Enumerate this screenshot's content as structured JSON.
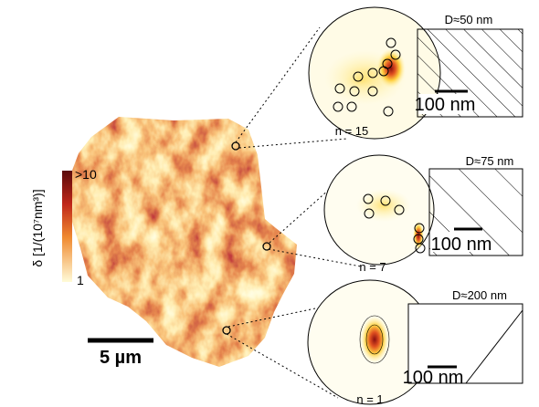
{
  "colorbar": {
    "label": "δ [1/(10⁷nm³)]",
    "max_label": ">10",
    "min_label": "1"
  },
  "scale_bar": "5 µm",
  "insets": [
    {
      "diameter_label": "D≈50 nm",
      "scale_label": "100 nm",
      "count_label": "n = 15"
    },
    {
      "diameter_label": "D≈75 nm",
      "scale_label": "100 nm",
      "count_label": "n = 7"
    },
    {
      "diameter_label": "D≈200 nm",
      "scale_label": "100 nm",
      "count_label": "n = 1"
    }
  ]
}
